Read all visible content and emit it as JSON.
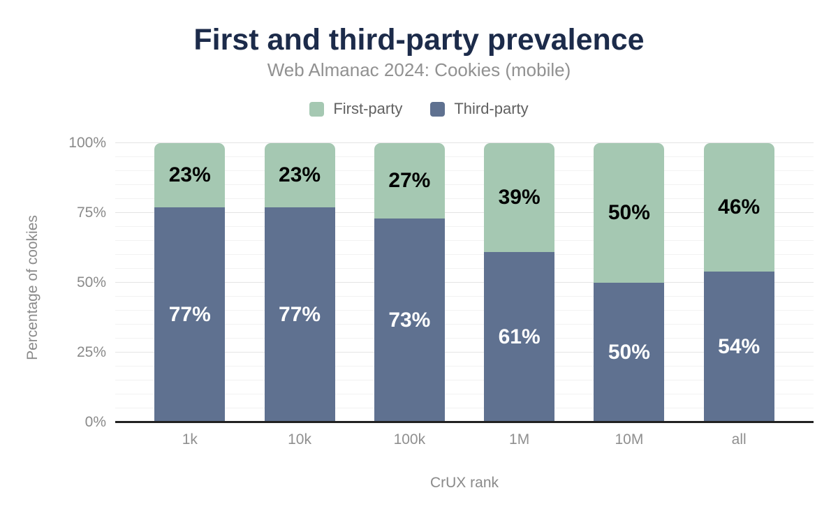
{
  "chart_data": {
    "type": "bar",
    "stacked": true,
    "title": "First and third-party prevalence",
    "subtitle": "Web Almanac 2024: Cookies (mobile)",
    "xlabel": "CrUX rank",
    "ylabel": "Percentage of cookies",
    "categories": [
      "1k",
      "10k",
      "100k",
      "1M",
      "10M",
      "all"
    ],
    "series": [
      {
        "name": "First-party",
        "color": "#a5c8b2",
        "label_color": "#000000",
        "values": [
          23,
          23,
          27,
          39,
          50,
          46
        ]
      },
      {
        "name": "Third-party",
        "color": "#5f7190",
        "label_color": "#ffffff",
        "values": [
          77,
          77,
          73,
          61,
          50,
          54
        ]
      }
    ],
    "value_suffix": "%",
    "ylim": [
      0,
      100
    ],
    "yticks": [
      {
        "value": 0,
        "label": "0%"
      },
      {
        "value": 25,
        "label": "25%"
      },
      {
        "value": 50,
        "label": "50%"
      },
      {
        "value": 75,
        "label": "75%"
      },
      {
        "value": 100,
        "label": "100%"
      }
    ],
    "grid": {
      "minor_step": 5,
      "major_step": 25
    },
    "legend_position": "top",
    "colors": {
      "title": "#1c2b4a",
      "axis_line": "#212121",
      "background": "#ffffff"
    }
  }
}
